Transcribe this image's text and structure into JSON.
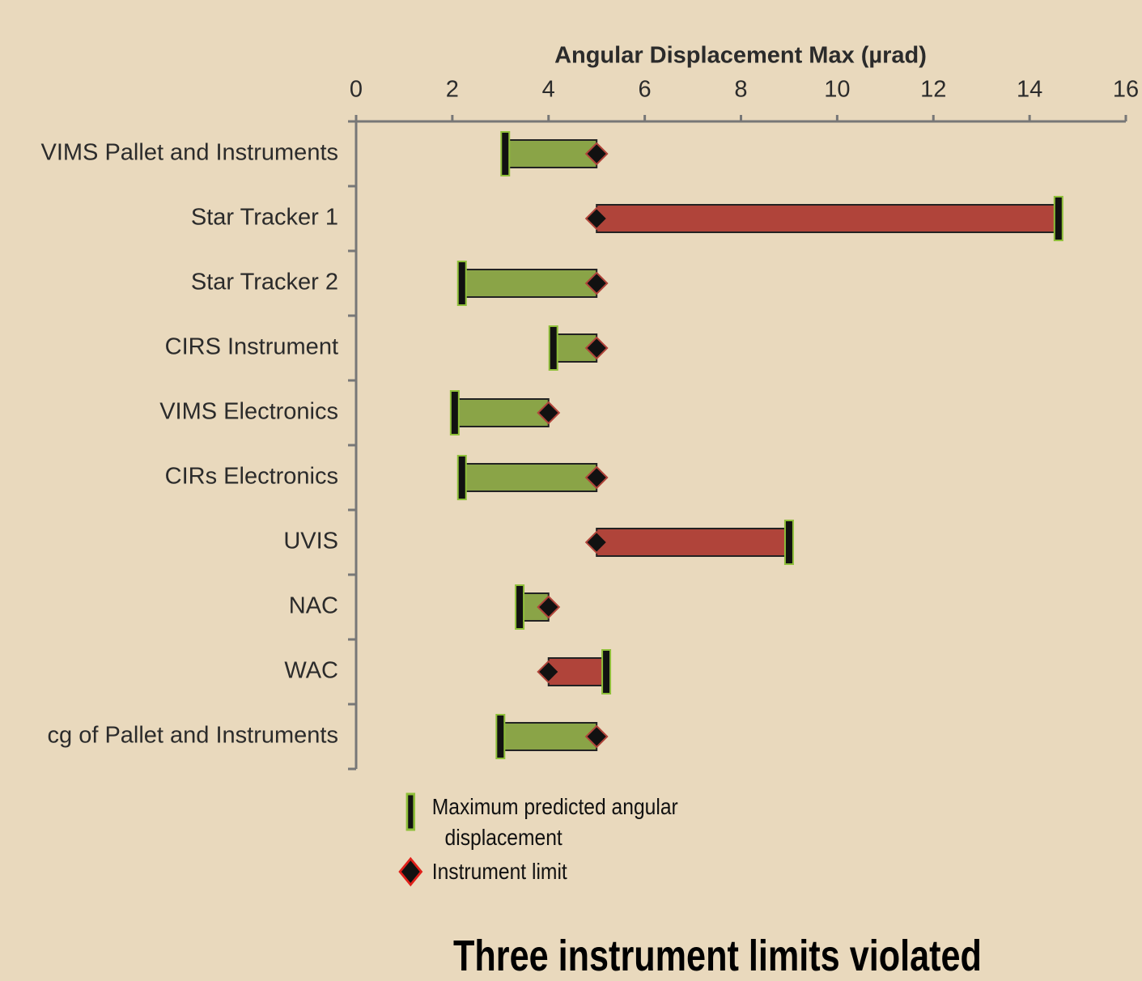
{
  "chart_data": {
    "type": "range_bar",
    "x_label": "Angular Displacement Max (µrad)",
    "annotation": "Three instrument limits violated",
    "categories": [
      "VIMS Pallet and Instruments",
      "Star Tracker 1",
      "Star Tracker 2",
      "CIRS Instrument",
      "VIMS Electronics",
      "CIRs Electronics",
      "UVIS",
      "NAC",
      "WAC",
      "cg of Pallet and Instruments"
    ],
    "series": [
      {
        "name": "Maximum predicted angular displacement",
        "color": "#111111",
        "values": [
          3.1,
          14.6,
          2.2,
          4.1,
          2.05,
          2.2,
          9.0,
          3.4,
          5.2,
          3.0
        ]
      },
      {
        "name": "Instrument limit",
        "color": "#111111",
        "values": [
          5,
          5,
          5,
          5,
          4,
          5,
          5,
          4,
          4,
          5
        ]
      }
    ],
    "bar_colors": [
      "#8aa447",
      "#b0443a"
    ],
    "xlim": [
      0,
      16
    ],
    "xticks": [
      0,
      2,
      4,
      6,
      8,
      10,
      12,
      14,
      16
    ]
  }
}
